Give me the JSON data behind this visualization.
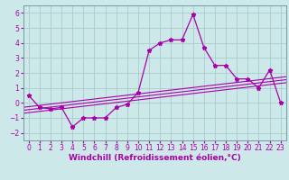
{
  "xlabel": "Windchill (Refroidissement éolien,°C)",
  "background_color": "#cce8e8",
  "grid_color": "#aacccc",
  "line_color": "#aa00aa",
  "x_hours": [
    0,
    1,
    2,
    3,
    4,
    5,
    6,
    7,
    8,
    9,
    10,
    11,
    12,
    13,
    14,
    15,
    16,
    17,
    18,
    19,
    20,
    21,
    22,
    23
  ],
  "windchill_values": [
    0.5,
    -0.3,
    -0.4,
    -0.3,
    -1.6,
    -1.0,
    -1.0,
    -1.0,
    -0.3,
    -0.1,
    0.7,
    3.5,
    4.0,
    4.2,
    4.2,
    5.9,
    3.7,
    2.5,
    2.5,
    1.6,
    1.6,
    1.0,
    2.2,
    0.0
  ],
  "reg_lines": [
    {
      "slope": 0.085,
      "intercept": -0.65
    },
    {
      "slope": 0.085,
      "intercept": -0.45
    },
    {
      "slope": 0.085,
      "intercept": -0.25
    }
  ],
  "ylim": [
    -2.5,
    6.5
  ],
  "xlim": [
    -0.5,
    23.5
  ],
  "yticks": [
    -2,
    -1,
    0,
    1,
    2,
    3,
    4,
    5,
    6
  ],
  "xticks": [
    0,
    1,
    2,
    3,
    4,
    5,
    6,
    7,
    8,
    9,
    10,
    11,
    12,
    13,
    14,
    15,
    16,
    17,
    18,
    19,
    20,
    21,
    22,
    23
  ],
  "tick_fontsize": 5.5,
  "label_fontsize": 6.5
}
